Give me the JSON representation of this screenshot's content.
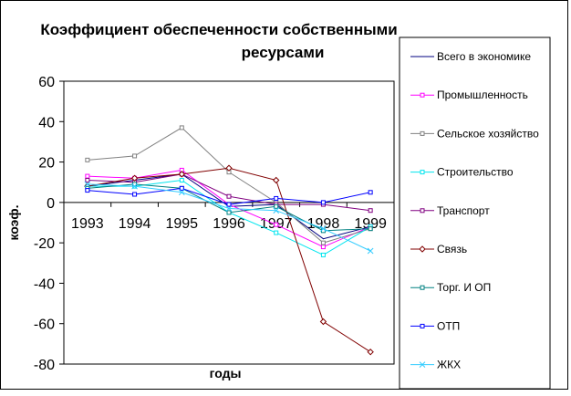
{
  "chart_data": {
    "type": "line",
    "title_lines": [
      "Коэффициент обеспеченности собственными",
      "ресурсами"
    ],
    "xlabel": "годы",
    "ylabel": "коэф.",
    "ylim": [
      -80,
      60
    ],
    "yticks": [
      -80,
      -60,
      -40,
      -20,
      0,
      20,
      40,
      60
    ],
    "categories": [
      "1993",
      "1994",
      "1995",
      "1996",
      "1997",
      "1998",
      "1999"
    ],
    "legend_position": "right",
    "series": [
      {
        "name": "Всего в экономике",
        "color": "#000080",
        "marker": "none",
        "values": [
          8,
          11,
          14,
          -2,
          -1,
          -18,
          -12
        ]
      },
      {
        "name": "Промышленность",
        "color": "#FF00FF",
        "marker": "square",
        "values": [
          13,
          12,
          16,
          -1,
          -11,
          -22,
          -12
        ]
      },
      {
        "name": "Сельское хозяйство",
        "color": "#808080",
        "marker": "square",
        "values": [
          21,
          23,
          37,
          15,
          0,
          -20,
          -13
        ]
      },
      {
        "name": "Строительство",
        "color": "#00E5EE",
        "marker": "square",
        "values": [
          8,
          8,
          11,
          -5,
          -15,
          -26,
          -12
        ]
      },
      {
        "name": "Транспорт",
        "color": "#800080",
        "marker": "square",
        "values": [
          11,
          10,
          14,
          3,
          -1,
          -1,
          -4
        ]
      },
      {
        "name": "Связь",
        "color": "#800000",
        "marker": "diamond",
        "values": [
          8,
          12,
          14,
          17,
          11,
          -59,
          -74
        ]
      },
      {
        "name": "Торг.  И ОП",
        "color": "#008080",
        "marker": "square",
        "values": [
          7,
          9,
          7,
          -5,
          -2,
          -14,
          -13
        ]
      },
      {
        "name": "ОТП",
        "color": "#0000FF",
        "marker": "square",
        "values": [
          6,
          4,
          7,
          -1,
          2,
          0,
          5
        ]
      },
      {
        "name": "ЖКХ",
        "color": "#33CCFF",
        "marker": "x",
        "values": [
          9,
          8,
          5,
          -3,
          -4,
          -13,
          -24
        ]
      }
    ]
  }
}
